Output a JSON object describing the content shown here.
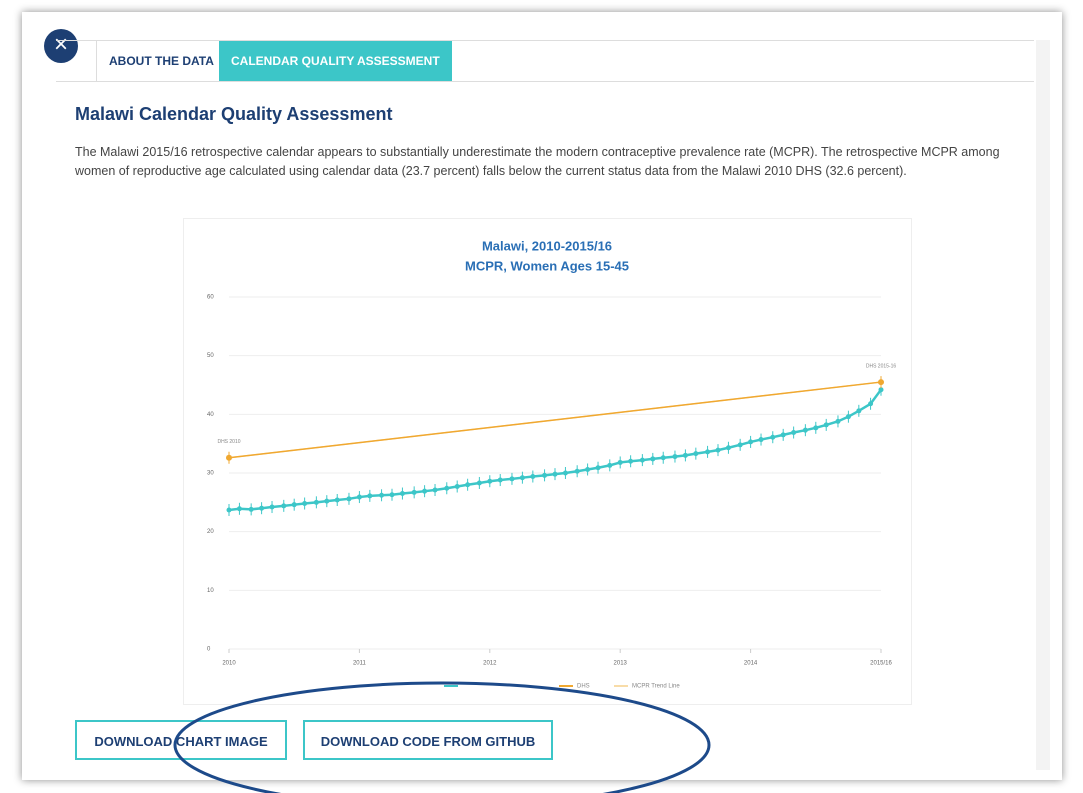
{
  "tabs": [
    "ABOUT THE DATA",
    "CALENDAR QUALITY ASSESSMENT"
  ],
  "heading": "Malawi Calendar Quality Assessment",
  "paragraph": "The Malawi 2015/16 retrospective calendar appears to substantially underestimate the modern contraceptive prevalence rate (MCPR). The retrospective MCPR among women of reproductive age calculated using calendar data (23.7 percent) falls below the current status data from the Malawi 2010 DHS (32.6 percent).",
  "chart_data": {
    "type": "line",
    "title": "Malawi, 2010-2015/16",
    "subtitle": "MCPR, Women Ages 15-45",
    "xlim": [
      2010,
      2015
    ],
    "xticks": [
      2010,
      2011,
      2012,
      2013,
      2014,
      {
        "value": 2015,
        "label": "2015/16"
      }
    ],
    "ylim": [
      0,
      60
    ],
    "yticks": [
      0,
      10,
      20,
      30,
      40,
      50,
      60
    ],
    "grid": true,
    "legend": "bottom",
    "series": [
      {
        "color": "#3cc6c8",
        "x": [
          2010,
          2010.08,
          2010.17,
          2010.25,
          2010.33,
          2010.42,
          2010.5,
          2010.58,
          2010.67,
          2010.75,
          2010.83,
          2010.92,
          2011,
          2011.08,
          2011.17,
          2011.25,
          2011.33,
          2011.42,
          2011.5,
          2011.58,
          2011.67,
          2011.75,
          2011.83,
          2011.92,
          2012,
          2012.08,
          2012.17,
          2012.25,
          2012.33,
          2012.42,
          2012.5,
          2012.58,
          2012.67,
          2012.75,
          2012.83,
          2012.92,
          2013,
          2013.08,
          2013.17,
          2013.25,
          2013.33,
          2013.42,
          2013.5,
          2013.58,
          2013.67,
          2013.75,
          2013.83,
          2013.92,
          2014,
          2014.08,
          2014.17,
          2014.25,
          2014.33,
          2014.42,
          2014.5,
          2014.58,
          2014.67,
          2014.75,
          2014.83,
          2014.92,
          2015
        ],
        "values": [
          23.7,
          23.9,
          23.8,
          24.0,
          24.2,
          24.4,
          24.6,
          24.8,
          25.0,
          25.2,
          25.4,
          25.6,
          25.9,
          26.1,
          26.2,
          26.3,
          26.5,
          26.7,
          26.9,
          27.1,
          27.4,
          27.7,
          28.0,
          28.3,
          28.6,
          28.8,
          29.0,
          29.2,
          29.4,
          29.6,
          29.8,
          30.0,
          30.3,
          30.6,
          30.9,
          31.3,
          31.8,
          32.0,
          32.2,
          32.4,
          32.6,
          32.8,
          33.0,
          33.3,
          33.6,
          33.9,
          34.3,
          34.8,
          35.3,
          35.7,
          36.1,
          36.5,
          36.9,
          37.3,
          37.7,
          38.2,
          38.8,
          39.6,
          40.6,
          41.8,
          44.2
        ]
      },
      {
        "name": "DHS",
        "color": "#f0a830",
        "x": [
          2010,
          2015
        ],
        "values": [
          32.6,
          45.5
        ]
      },
      {
        "name": "MCPR Trend Line",
        "color": "#f8dca8",
        "x": [
          2010,
          2015
        ],
        "values": [
          32.6,
          45.5
        ]
      }
    ],
    "annotations": [
      "DHS 2010",
      "DHS 2015-16"
    ]
  },
  "buttons": [
    "DOWNLOAD CHART IMAGE",
    "DOWNLOAD CODE FROM GITHUB"
  ]
}
